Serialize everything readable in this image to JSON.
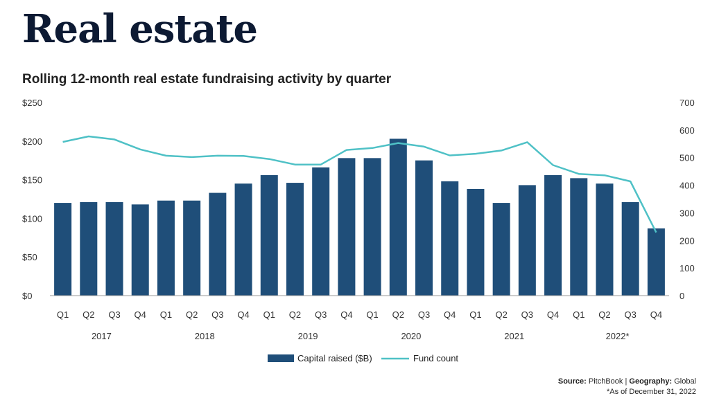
{
  "header": {
    "title": "Real estate",
    "subtitle": "Rolling 12-month real estate fundraising activity by quarter"
  },
  "footer": {
    "source_label": "Source:",
    "source_value": "PitchBook",
    "separator": "|",
    "geography_label": "Geography:",
    "geography_value": "Global",
    "note": "*As of December 31, 2022"
  },
  "colors": {
    "bar": "#1f4e79",
    "line": "#4fc1c6",
    "axis": "#9a9a9a"
  },
  "chart_data": {
    "type": "bar",
    "categories": [
      "Q1",
      "Q2",
      "Q3",
      "Q4",
      "Q1",
      "Q2",
      "Q3",
      "Q4",
      "Q1",
      "Q2",
      "Q3",
      "Q4",
      "Q1",
      "Q2",
      "Q3",
      "Q4",
      "Q1",
      "Q2",
      "Q3",
      "Q4",
      "Q1",
      "Q2",
      "Q3",
      "Q4"
    ],
    "year_groups": [
      {
        "label": "2017",
        "start": 0,
        "end": 3
      },
      {
        "label": "2018",
        "start": 4,
        "end": 7
      },
      {
        "label": "2019",
        "start": 8,
        "end": 11
      },
      {
        "label": "2020",
        "start": 12,
        "end": 15
      },
      {
        "label": "2021",
        "start": 16,
        "end": 19
      },
      {
        "label": "2022*",
        "start": 20,
        "end": 23
      }
    ],
    "series": [
      {
        "name": "Capital raised ($B)",
        "type": "bar",
        "axis": "left",
        "values": [
          120,
          121,
          121,
          118,
          123,
          123,
          133,
          145,
          156,
          146,
          166,
          178,
          178,
          203,
          175,
          148,
          138,
          120,
          143,
          156,
          152,
          145,
          121,
          87
        ]
      },
      {
        "name": "Fund count",
        "type": "line",
        "axis": "right",
        "values": [
          557,
          577,
          566,
          530,
          507,
          502,
          507,
          506,
          495,
          475,
          475,
          528,
          535,
          553,
          540,
          508,
          514,
          526,
          556,
          473,
          441,
          436,
          414,
          229
        ]
      }
    ],
    "y_left": {
      "ticks": [
        0,
        50,
        100,
        150,
        200,
        250
      ],
      "tick_labels": [
        "$0",
        "$50",
        "$100",
        "$150",
        "$200",
        "$250"
      ],
      "lim": [
        0,
        250
      ]
    },
    "y_right": {
      "ticks": [
        0,
        100,
        200,
        300,
        400,
        500,
        600,
        700
      ],
      "tick_labels": [
        "0",
        "100",
        "200",
        "300",
        "400",
        "500",
        "600",
        "700"
      ],
      "lim": [
        0,
        700
      ]
    },
    "grid": false,
    "legend_position": "bottom-center"
  }
}
